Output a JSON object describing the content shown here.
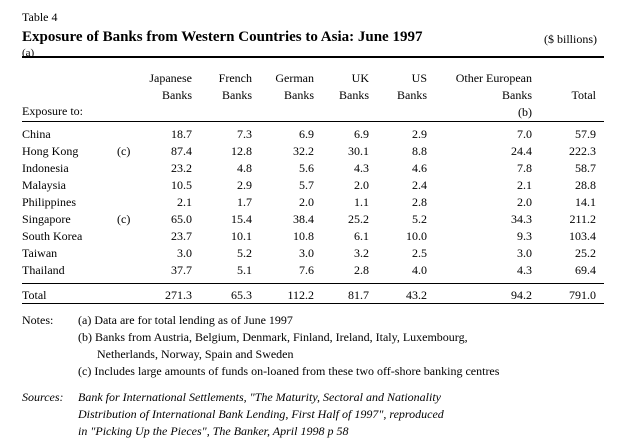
{
  "table_label": "Table 4",
  "title": "Exposure of Banks from Western Countries to Asia: June 1997",
  "title_note": "(a)",
  "unit": "($ billions)",
  "columns": [
    {
      "line1": "Japanese",
      "line2": "Banks"
    },
    {
      "line1": "French",
      "line2": "Banks"
    },
    {
      "line1": "German",
      "line2": "Banks"
    },
    {
      "line1": "UK",
      "line2": "Banks"
    },
    {
      "line1": "US",
      "line2": "Banks"
    },
    {
      "line1": "Other European",
      "line2": "Banks",
      "line3": "(b)"
    },
    {
      "line1": "",
      "line2": "Total"
    }
  ],
  "row_header": "Exposure to:",
  "rows": [
    {
      "country": "China",
      "note": "",
      "values": [
        "18.7",
        "7.3",
        "6.9",
        "6.9",
        "2.9",
        "7.0",
        "57.9"
      ]
    },
    {
      "country": "Hong Kong",
      "note": "(c)",
      "values": [
        "87.4",
        "12.8",
        "32.2",
        "30.1",
        "8.8",
        "24.4",
        "222.3"
      ]
    },
    {
      "country": "Indonesia",
      "note": "",
      "values": [
        "23.2",
        "4.8",
        "5.6",
        "4.3",
        "4.6",
        "7.8",
        "58.7"
      ]
    },
    {
      "country": "Malaysia",
      "note": "",
      "values": [
        "10.5",
        "2.9",
        "5.7",
        "2.0",
        "2.4",
        "2.1",
        "28.8"
      ]
    },
    {
      "country": "Philippines",
      "note": "",
      "values": [
        "2.1",
        "1.7",
        "2.0",
        "1.1",
        "2.8",
        "2.0",
        "14.1"
      ]
    },
    {
      "country": "Singapore",
      "note": "(c)",
      "values": [
        "65.0",
        "15.4",
        "38.4",
        "25.2",
        "5.2",
        "34.3",
        "211.2"
      ]
    },
    {
      "country": "South Korea",
      "note": "",
      "values": [
        "23.7",
        "10.1",
        "10.8",
        "6.1",
        "10.0",
        "9.3",
        "103.4"
      ]
    },
    {
      "country": "Taiwan",
      "note": "",
      "values": [
        "3.0",
        "5.2",
        "3.0",
        "3.2",
        "2.5",
        "3.0",
        "25.2"
      ]
    },
    {
      "country": "Thailand",
      "note": "",
      "values": [
        "37.7",
        "5.1",
        "7.6",
        "2.8",
        "4.0",
        "4.3",
        "69.4"
      ]
    }
  ],
  "total_row": {
    "label": "Total",
    "values": [
      "271.3",
      "65.3",
      "112.2",
      "81.7",
      "43.2",
      "94.2",
      "791.0"
    ]
  },
  "notes_label": "Notes:",
  "notes": [
    "(a) Data are for total lending as of June 1997",
    "(b) Banks from Austria, Belgium, Denmark, Finland, Ireland, Italy, Luxembourg,",
    "Netherlands, Norway, Spain and Sweden",
    "(c) Includes large amounts of funds on-loaned from these two off-shore banking centres"
  ],
  "sources_label": "Sources:",
  "sources": [
    "Bank for International Settlements, \"The Maturity, Sectoral and Nationality",
    "Distribution of International Bank Lending, First Half of 1997\", reproduced",
    "in \"Picking Up the Pieces\", The Banker, April 1998 p 58"
  ]
}
